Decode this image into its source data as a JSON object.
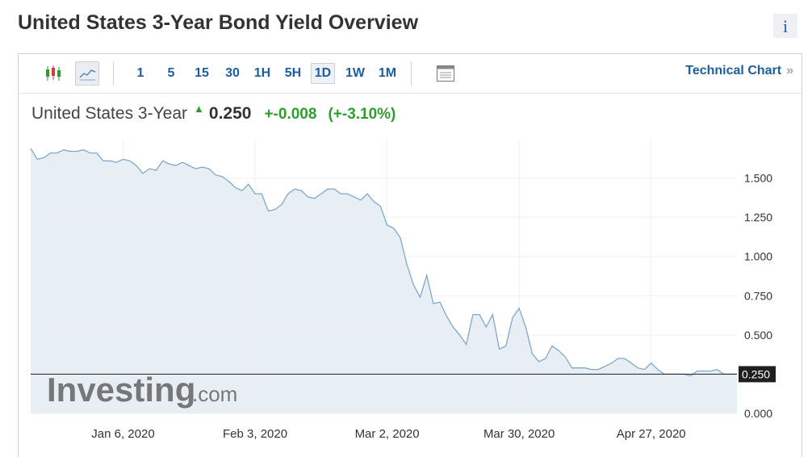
{
  "page": {
    "title": "United States 3-Year Bond Yield Overview",
    "info_icon": "i"
  },
  "toolbar": {
    "intervals": [
      {
        "label": "1",
        "active": false
      },
      {
        "label": "5",
        "active": false
      },
      {
        "label": "15",
        "active": false
      },
      {
        "label": "30",
        "active": false
      },
      {
        "label": "1H",
        "active": false
      },
      {
        "label": "5H",
        "active": false
      },
      {
        "label": "1D",
        "active": true
      },
      {
        "label": "1W",
        "active": false
      },
      {
        "label": "1M",
        "active": false
      }
    ],
    "technical_chart_label": "Technical Chart",
    "technical_chart_chevron": "»"
  },
  "quote": {
    "name": "United States 3-Year",
    "last": "0.250",
    "change": "+-0.008",
    "change_pct": "(+-3.10%)"
  },
  "watermark": {
    "brand": "Investing",
    "suffix": ".com"
  },
  "colors": {
    "line": "#7fa8cc",
    "fill": "#e5edf3",
    "up": "#2ca02c",
    "link": "#1d5ea3"
  },
  "chart_data": {
    "type": "area",
    "title": "",
    "xlabel": "",
    "ylabel": "",
    "ylim": [
      0,
      1.75
    ],
    "yticks": [
      "1.500",
      "1.250",
      "1.000",
      "0.750",
      "0.500",
      "0.000"
    ],
    "ytick_values": [
      1.5,
      1.25,
      1.0,
      0.75,
      0.5,
      0.0
    ],
    "xticks": [
      "Jan 6, 2020",
      "Feb 3, 2020",
      "Mar 2, 2020",
      "Mar 30, 2020",
      "Apr 27, 2020"
    ],
    "xtick_index": [
      14,
      34,
      54,
      74,
      94
    ],
    "current_value": 0.25,
    "current_label": "0.250",
    "grid": true,
    "series": [
      {
        "values": [
          1.69,
          1.62,
          1.63,
          1.66,
          1.66,
          1.68,
          1.67,
          1.67,
          1.68,
          1.66,
          1.66,
          1.61,
          1.61,
          1.6,
          1.62,
          1.61,
          1.58,
          1.53,
          1.56,
          1.55,
          1.61,
          1.59,
          1.58,
          1.6,
          1.58,
          1.56,
          1.57,
          1.56,
          1.52,
          1.51,
          1.48,
          1.44,
          1.42,
          1.46,
          1.4,
          1.4,
          1.29,
          1.3,
          1.33,
          1.4,
          1.43,
          1.42,
          1.38,
          1.37,
          1.4,
          1.43,
          1.43,
          1.4,
          1.4,
          1.38,
          1.36,
          1.4,
          1.35,
          1.32,
          1.2,
          1.18,
          1.12,
          0.95,
          0.82,
          0.74,
          0.88,
          0.7,
          0.71,
          0.62,
          0.55,
          0.5,
          0.44,
          0.63,
          0.63,
          0.55,
          0.63,
          0.41,
          0.43,
          0.61,
          0.67,
          0.55,
          0.38,
          0.33,
          0.35,
          0.43,
          0.4,
          0.36,
          0.29,
          0.29,
          0.29,
          0.28,
          0.28,
          0.3,
          0.32,
          0.35,
          0.35,
          0.32,
          0.29,
          0.28,
          0.32,
          0.28,
          0.25,
          0.25,
          0.25,
          0.25,
          0.24,
          0.27,
          0.27,
          0.27,
          0.28,
          0.25,
          0.25,
          0.25
        ]
      }
    ]
  }
}
